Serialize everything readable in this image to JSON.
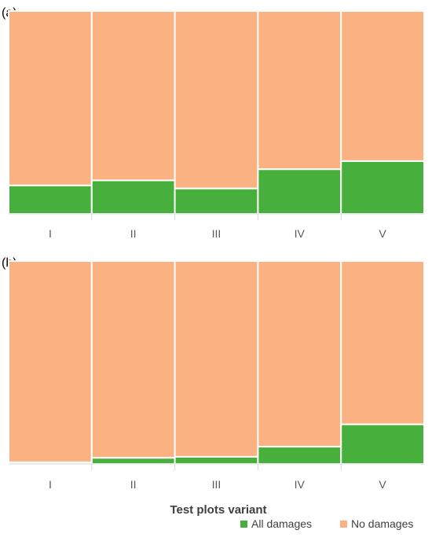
{
  "chart_data": [
    {
      "type": "bar",
      "stacked": true,
      "normalized_percent": true,
      "panel_label": "(a)",
      "categories": [
        "I",
        "II",
        "III",
        "IV",
        "V"
      ],
      "series": [
        {
          "name": "All damages",
          "values": [
            14,
            16.5,
            12.5,
            22,
            26
          ]
        },
        {
          "name": "No damages",
          "values": [
            86,
            83.5,
            87.5,
            78,
            74
          ]
        }
      ],
      "ylim": [
        0,
        100
      ],
      "grid": false
    },
    {
      "type": "bar",
      "stacked": true,
      "normalized_percent": true,
      "panel_label": "(b)",
      "categories": [
        "I",
        "II",
        "III",
        "IV",
        "V"
      ],
      "series": [
        {
          "name": "All damages",
          "values": [
            0.8,
            3,
            3.5,
            8.5,
            19.5
          ]
        },
        {
          "name": "No damages",
          "values": [
            99.2,
            97,
            96.5,
            91.5,
            80.5
          ]
        }
      ],
      "ylim": [
        0,
        100
      ],
      "grid": false
    }
  ],
  "xlabel": "Test plots variant",
  "legend": {
    "placement": "bottom-right",
    "items": [
      {
        "label": "All damages",
        "color": "#47b03c"
      },
      {
        "label": "No damages",
        "color": "#fbb283"
      }
    ]
  },
  "colors": {
    "damaged": "#47b03c",
    "undamaged": "#fbb283",
    "separator": "#ffffff",
    "axis": "#d9d9d9"
  }
}
